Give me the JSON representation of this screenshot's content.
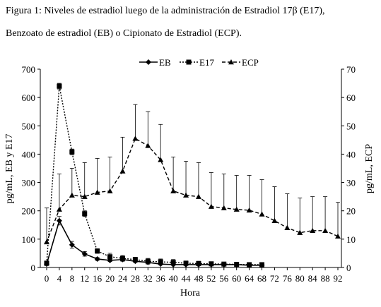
{
  "figure": {
    "caption_line1": "Figura 1: Niveles de estradiol luego de la administración de Estradiol 17β (E17),",
    "caption_line2": "Benzoato de estradiol (EB) o Cipionato de Estradiol (ECP)."
  },
  "chart_data": {
    "type": "line",
    "xlabel": "Hora",
    "ylabel_left": "pg/mL, EB y E17",
    "ylabel_right": "pg/mL, ECP",
    "x_ticks": [
      0,
      4,
      8,
      12,
      16,
      20,
      24,
      28,
      32,
      36,
      40,
      44,
      48,
      52,
      56,
      60,
      64,
      68,
      72,
      76,
      80,
      84,
      88,
      92
    ],
    "xlim": [
      0,
      92
    ],
    "ylim_left": [
      0,
      700
    ],
    "yticks_left": [
      0,
      100,
      200,
      300,
      400,
      500,
      600,
      700
    ],
    "ylim_right": [
      0,
      70
    ],
    "yticks_right": [
      0,
      10,
      20,
      30,
      40,
      50,
      60,
      70
    ],
    "legend_position": "top-center",
    "grid": false,
    "series": [
      {
        "name": "EB",
        "axis": "left",
        "line_style": "solid",
        "marker": "diamond",
        "x": [
          0,
          4,
          8,
          12,
          16,
          20,
          24,
          28,
          32,
          36,
          40,
          44,
          48,
          52,
          56,
          60,
          64,
          68
        ],
        "y": [
          12,
          165,
          80,
          48,
          30,
          25,
          28,
          22,
          18,
          12,
          10,
          10,
          10,
          10,
          10,
          10,
          8,
          8
        ],
        "error": [
          5,
          15,
          12,
          8,
          5,
          4,
          5,
          4,
          3,
          3,
          2,
          2,
          2,
          2,
          2,
          2,
          2,
          2
        ]
      },
      {
        "name": "E17",
        "axis": "left",
        "line_style": "dotted",
        "marker": "square",
        "x": [
          0,
          4,
          8,
          12,
          16,
          20,
          24,
          28,
          32,
          36,
          40,
          44,
          48,
          52,
          56,
          60,
          64,
          68
        ],
        "y": [
          15,
          640,
          408,
          190,
          58,
          38,
          32,
          28,
          22,
          20,
          18,
          15,
          14,
          13,
          12,
          11,
          10,
          10
        ],
        "error": [
          8,
          10,
          10,
          10,
          8,
          12,
          10,
          8,
          10,
          10,
          10,
          8,
          8,
          6,
          6,
          6,
          5,
          5
        ]
      },
      {
        "name": "ECP",
        "axis": "right",
        "line_style": "dashed",
        "marker": "triangle",
        "x": [
          0,
          4,
          8,
          12,
          16,
          20,
          24,
          28,
          32,
          36,
          40,
          44,
          48,
          52,
          56,
          60,
          64,
          68,
          72,
          76,
          80,
          84,
          88,
          92
        ],
        "y": [
          9,
          20.5,
          25.5,
          25,
          26.5,
          27,
          34,
          45.5,
          43,
          38,
          27,
          25.5,
          25,
          21.5,
          21,
          20.5,
          20.2,
          18.8,
          16.5,
          14,
          12.3,
          13,
          13,
          11
        ],
        "error_upper": [
          21,
          33,
          35,
          37,
          38.5,
          39,
          46,
          57.5,
          55,
          50.5,
          39,
          37.5,
          37,
          33.5,
          33,
          32.5,
          32.5,
          31,
          28.5,
          26,
          24.5,
          25,
          25,
          23
        ]
      }
    ]
  }
}
